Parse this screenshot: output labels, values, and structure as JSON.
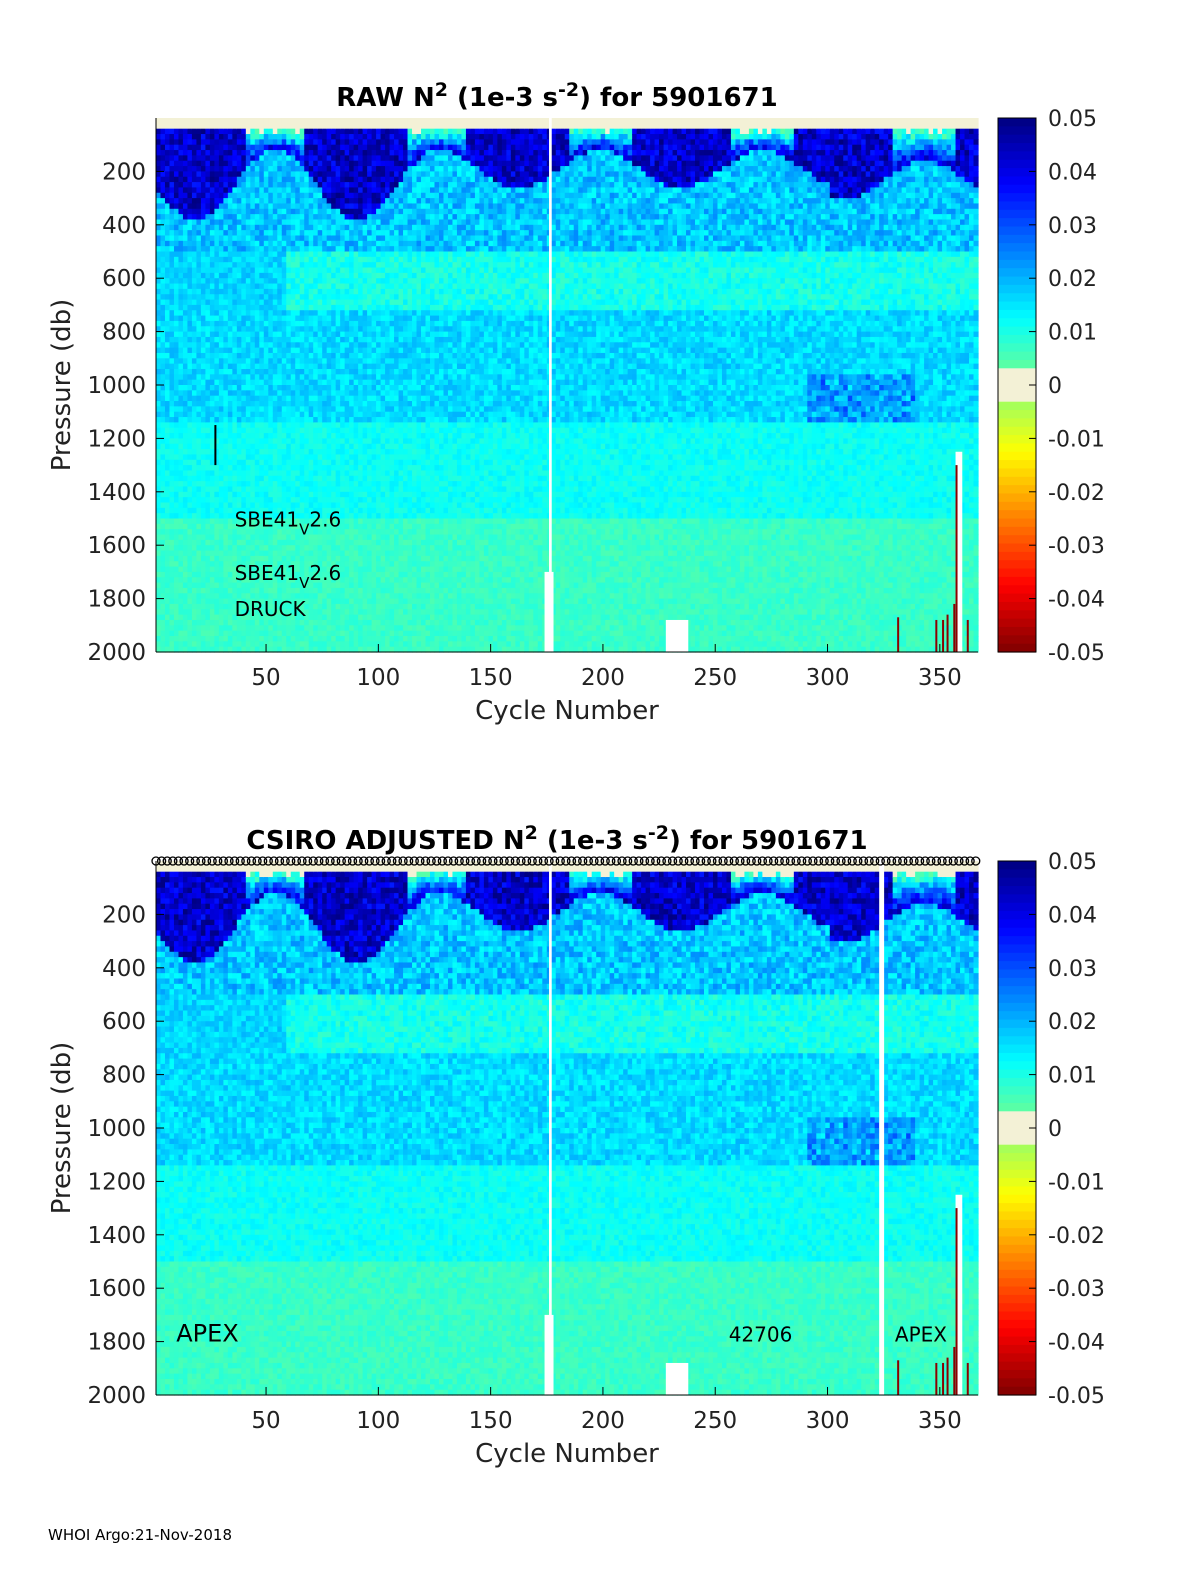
{
  "footer": "WHOI Argo:21-Nov-2018",
  "chart_data": [
    {
      "type": "heatmap",
      "title_main": "RAW N",
      "title_sup1": "2",
      "title_mid": " (1e-3 s",
      "title_sup2": "-2",
      "title_end": ") for 5901671",
      "xlabel": "Cycle Number",
      "ylabel": "Pressure (db)",
      "xlim": [
        1,
        367
      ],
      "ylim": [
        2000,
        0
      ],
      "xticks": [
        50,
        100,
        150,
        200,
        250,
        300,
        350
      ],
      "yticks": [
        200,
        400,
        600,
        800,
        1000,
        1200,
        1400,
        1600,
        1800,
        2000
      ],
      "colorbar": {
        "min": -0.05,
        "max": 0.05,
        "ticks": [
          "0.05",
          "0.04",
          "0.03",
          "0.02",
          "0.01",
          "0",
          "-0.01",
          "-0.02",
          "-0.03",
          "-0.04",
          "-0.05"
        ]
      },
      "annotations": [
        {
          "kind": "sub",
          "base": "SBE41",
          "sub": "V",
          "rest": "2.6",
          "x": 36,
          "y": 1530
        },
        {
          "kind": "sub",
          "base": "SBE41",
          "sub": "V",
          "rest": "2.6",
          "x": 36,
          "y": 1730
        },
        {
          "kind": "plain",
          "text": "DRUCK",
          "x": 36,
          "y": 1865
        }
      ]
    },
    {
      "type": "heatmap",
      "title_main": "CSIRO  ADJUSTED N",
      "title_sup1": "2",
      "title_mid": " (1e-3 s",
      "title_sup2": "-2",
      "title_end": ") for 5901671",
      "xlabel": "Cycle Number",
      "ylabel": "Pressure (db)",
      "xlim": [
        1,
        367
      ],
      "ylim": [
        2000,
        0
      ],
      "xticks": [
        50,
        100,
        150,
        200,
        250,
        300,
        350
      ],
      "yticks": [
        200,
        400,
        600,
        800,
        1000,
        1200,
        1400,
        1600,
        1800,
        2000
      ],
      "colorbar": {
        "min": -0.05,
        "max": 0.05,
        "ticks": [
          "0.05",
          "0.04",
          "0.03",
          "0.02",
          "0.01",
          "0",
          "-0.01",
          "-0.02",
          "-0.03",
          "-0.04",
          "-0.05"
        ]
      },
      "annotations": [
        {
          "kind": "plain",
          "text": "APEX",
          "x": 10,
          "y": 1800,
          "size": "large"
        },
        {
          "kind": "plain",
          "text": "42706",
          "x": 256,
          "y": 1800
        },
        {
          "kind": "plain",
          "text": "APEX",
          "x": 330,
          "y": 1800
        }
      ]
    }
  ]
}
